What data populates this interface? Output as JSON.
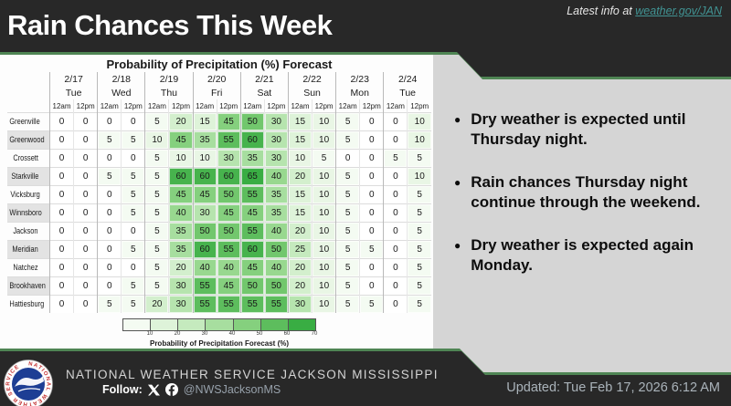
{
  "header": {
    "title": "Rain Chances This Week",
    "latest_info_prefix": "Latest info at",
    "latest_info_link": "weather.gov/JAN"
  },
  "chart_data": {
    "type": "heatmap",
    "title": "Probability of Precipitation (%) Forecast",
    "dates": [
      "2/17",
      "2/18",
      "2/19",
      "2/20",
      "2/21",
      "2/22",
      "2/23",
      "2/24"
    ],
    "days": [
      "Tue",
      "Wed",
      "Thu",
      "Fri",
      "Sat",
      "Sun",
      "Mon",
      "Tue"
    ],
    "periods": [
      "12am",
      "12pm"
    ],
    "rows": [
      {
        "city": "Greenville",
        "values": [
          0,
          0,
          0,
          0,
          5,
          20,
          15,
          45,
          50,
          30,
          15,
          10,
          5,
          0,
          0,
          10
        ]
      },
      {
        "city": "Greenwood",
        "values": [
          0,
          0,
          5,
          5,
          10,
          45,
          35,
          55,
          60,
          30,
          15,
          10,
          5,
          0,
          0,
          10
        ]
      },
      {
        "city": "Crossett",
        "values": [
          0,
          0,
          0,
          0,
          5,
          10,
          10,
          30,
          35,
          30,
          10,
          5,
          0,
          0,
          5,
          5
        ]
      },
      {
        "city": "Starkville",
        "values": [
          0,
          0,
          5,
          5,
          5,
          60,
          60,
          60,
          65,
          40,
          20,
          10,
          5,
          0,
          0,
          10
        ]
      },
      {
        "city": "Vicksburg",
        "values": [
          0,
          0,
          0,
          5,
          5,
          45,
          45,
          50,
          55,
          35,
          15,
          10,
          5,
          0,
          0,
          5
        ]
      },
      {
        "city": "Winnsboro",
        "values": [
          0,
          0,
          0,
          5,
          5,
          40,
          30,
          45,
          45,
          35,
          15,
          10,
          5,
          0,
          0,
          5
        ]
      },
      {
        "city": "Jackson",
        "values": [
          0,
          0,
          0,
          0,
          5,
          35,
          50,
          50,
          55,
          40,
          20,
          10,
          5,
          0,
          0,
          5
        ]
      },
      {
        "city": "Meridian",
        "values": [
          0,
          0,
          0,
          5,
          5,
          35,
          60,
          55,
          60,
          50,
          25,
          10,
          5,
          5,
          0,
          5
        ]
      },
      {
        "city": "Natchez",
        "values": [
          0,
          0,
          0,
          0,
          5,
          20,
          40,
          40,
          45,
          40,
          20,
          10,
          5,
          0,
          0,
          5
        ]
      },
      {
        "city": "Brookhaven",
        "values": [
          0,
          0,
          0,
          5,
          5,
          30,
          55,
          45,
          50,
          50,
          20,
          10,
          5,
          0,
          0,
          5
        ]
      },
      {
        "city": "Hattiesburg",
        "values": [
          0,
          0,
          5,
          5,
          20,
          30,
          55,
          55,
          55,
          55,
          30,
          10,
          5,
          5,
          0,
          5
        ]
      }
    ],
    "colorbar": {
      "label": "Probability of Precipitation Forecast (%)",
      "ticks": [
        10,
        20,
        30,
        40,
        50,
        60,
        70
      ],
      "range": [
        0,
        70
      ],
      "scale": [
        [
          0,
          "#ffffff"
        ],
        [
          10,
          "#e9f6e5"
        ],
        [
          20,
          "#d3efcd"
        ],
        [
          30,
          "#b6e4ae"
        ],
        [
          40,
          "#98d88f"
        ],
        [
          50,
          "#72c76d"
        ],
        [
          60,
          "#47b34d"
        ],
        [
          70,
          "#2ba639"
        ]
      ]
    }
  },
  "bullets": [
    "Dry weather is expected until Thursday night.",
    "Rain chances Thursday night continue through the weekend.",
    "Dry weather is expected again Monday."
  ],
  "footer": {
    "org": "NATIONAL WEATHER SERVICE JACKSON MISSISSIPPI",
    "follow_label": "Follow:",
    "handle": "@NWSJacksonMS",
    "updated": "Updated: Tue Feb 17, 2026 6:12 AM",
    "logo_ring_text": "NATIONAL WEATHER SERVICE"
  },
  "colors": {
    "accent_green": "#4f8554",
    "bar_dark": "#282828",
    "panel_gray": "#d5d5d5",
    "table_panel_white": "#fdfdfd",
    "link_teal": "#419393",
    "logo_blue": "#1d3e94",
    "logo_red": "#c23131"
  }
}
